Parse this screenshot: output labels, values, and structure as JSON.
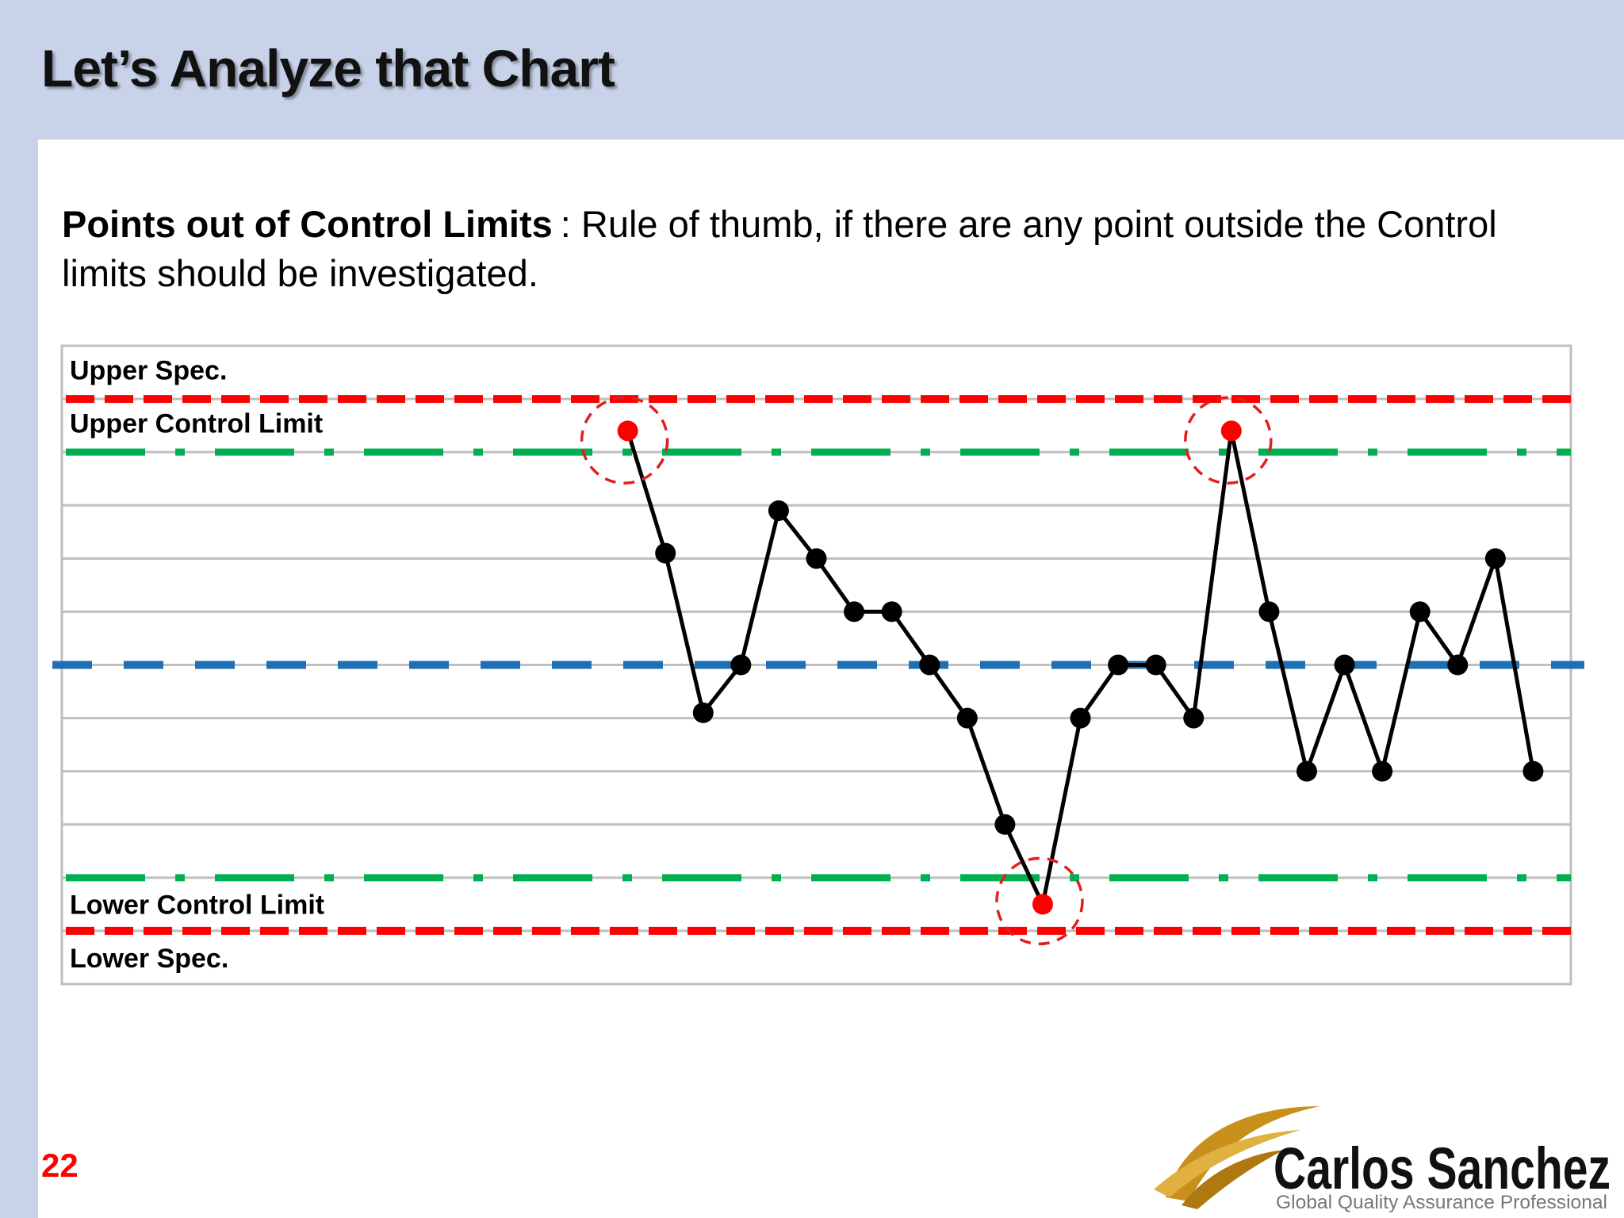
{
  "title": "Let’s Analyze that Chart",
  "body": {
    "term": "Points out of Control Limits",
    "text": ": Rule of thumb, if there are any point outside the Control limits should be investigated."
  },
  "page_number": "22",
  "logo": {
    "name": "Carlos Sanchez",
    "tagline": "Global Quality Assurance Professional"
  },
  "chart_data": {
    "type": "line",
    "values": [
      null,
      null,
      null,
      null,
      null,
      null,
      null,
      null,
      null,
      null,
      null,
      null,
      null,
      null,
      null,
      4.4,
      2.1,
      -0.9,
      0,
      2.9,
      2,
      1,
      1,
      0,
      -1,
      -3,
      -4.5,
      -1,
      0,
      0,
      -1,
      4.4,
      1,
      -2,
      0,
      -2,
      1,
      0,
      2,
      -2
    ],
    "color": "#000000",
    "out_color": "#ff0000",
    "ylim": [
      -6,
      6
    ],
    "yticks": [
      -6,
      -5,
      -4,
      -3,
      -2,
      -1,
      0,
      1,
      2,
      3,
      4,
      5,
      6
    ],
    "grid": true,
    "center_line": {
      "value": 0,
      "color": "#1f6fb4",
      "style": "dash"
    },
    "limits": [
      {
        "name": "Upper Spec.",
        "value": 5,
        "color": "#ff0000",
        "style": "dash"
      },
      {
        "name": "Upper Control Limit",
        "value": 4,
        "color": "#00b050",
        "style": "dash-dot"
      },
      {
        "name": "Lower Control Limit",
        "value": -4,
        "color": "#00b050",
        "style": "dash-dot"
      },
      {
        "name": "Lower Spec.",
        "value": -5,
        "color": "#ff0000",
        "style": "dash"
      }
    ]
  }
}
